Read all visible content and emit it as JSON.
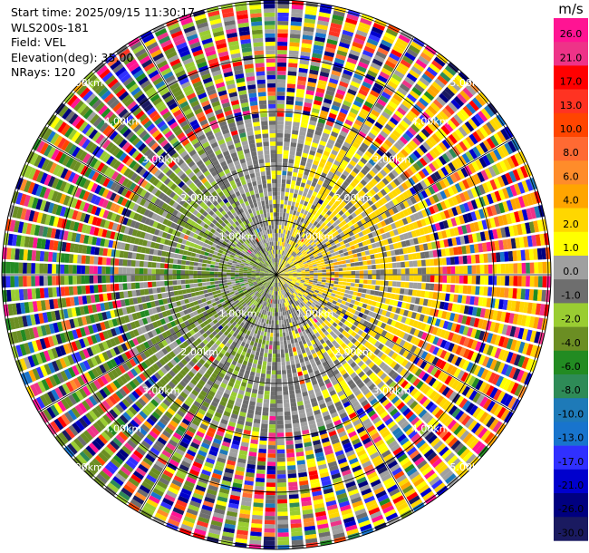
{
  "meta": {
    "start_time": "Start time: 2025/09/15 11:30:17",
    "instrument": "WLS200s-181",
    "field": "Field: VEL",
    "elevation": "Elevation(deg): 35.00",
    "nrays": "NRays: 120"
  },
  "chart_data": {
    "type": "heatmap",
    "projection": "polar-ppi",
    "nrays": 120,
    "elevation_deg": 35.0,
    "range_rings_km": [
      1,
      2,
      3,
      4,
      5
    ],
    "ring_labels": {
      "NW": [
        "1.00km",
        "2.00km",
        "3.00km",
        "4.00km",
        "5.00km"
      ],
      "NE": [
        "1.00km",
        "2.00km",
        "3.00km",
        "4.00km",
        "5.00km"
      ],
      "SE": [
        "1.00km",
        "2.00km",
        "3.00km",
        "4.00km",
        "5.00km"
      ],
      "SW": [
        "1.00km",
        "2.00km",
        "3.00km",
        "4.00km",
        "5.00km"
      ]
    },
    "colorbar": {
      "unit": "m/s",
      "ticks": [
        "26.0",
        "21.0",
        "17.0",
        "13.0",
        "10.0",
        "8.0",
        "6.0",
        "4.0",
        "2.0",
        "1.0",
        "0.0",
        "-1.0",
        "-2.0",
        "-4.0",
        "-6.0",
        "-8.0",
        "-10.0",
        "-13.0",
        "-17.0",
        "-21.0",
        "-26.0",
        "-30.0"
      ],
      "colors": [
        "#ff1493",
        "#ee3388",
        "#ff0000",
        "#ff3322",
        "#ff4500",
        "#ff6a33",
        "#ff8c2a",
        "#ffa500",
        "#ffd700",
        "#ffff00",
        "#a0a0a0",
        "#6e6e6e",
        "#9acd32",
        "#6b8e23",
        "#228b22",
        "#2e8b57",
        "#1e7ab8",
        "#1874cd",
        "#3030ff",
        "#0000cd",
        "#000080",
        "#1a1a60"
      ]
    },
    "series": [
      {
        "region": "inner-west (toward)",
        "typical_velocity_ms": -2.0
      },
      {
        "region": "inner-east (away)",
        "typical_velocity_ms": 3.0
      },
      {
        "region": "beyond ~3 km",
        "typical_velocity_ms": "noise"
      }
    ]
  }
}
